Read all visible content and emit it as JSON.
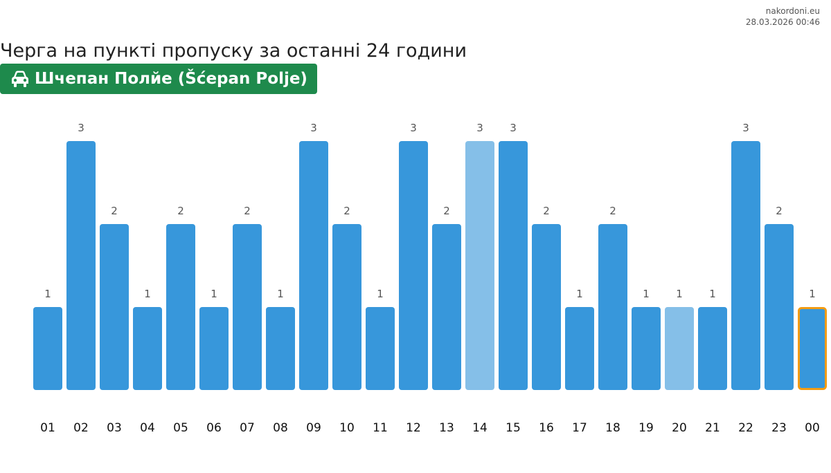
{
  "source": {
    "site": "nakordoni.eu",
    "timestamp": "28.03.2026 00:46"
  },
  "header": {
    "title": "Черга на пункті пропуску за останні 24 години",
    "checkpoint_name": "Шчепан Полйе (Šćepan Polje)",
    "vehicle_icon": "car-icon",
    "badge_color": "#1e8a4c"
  },
  "chart_data": {
    "type": "bar",
    "categories": [
      "01",
      "02",
      "03",
      "04",
      "05",
      "06",
      "07",
      "08",
      "09",
      "10",
      "11",
      "12",
      "13",
      "14",
      "15",
      "16",
      "17",
      "18",
      "19",
      "20",
      "21",
      "22",
      "23",
      "00"
    ],
    "values": [
      1,
      3,
      2,
      1,
      2,
      1,
      2,
      1,
      3,
      2,
      1,
      3,
      2,
      3,
      3,
      2,
      1,
      2,
      1,
      1,
      1,
      3,
      2,
      1
    ],
    "ylim": [
      0,
      3
    ],
    "grid": false,
    "legend": "none",
    "colors": {
      "bar": "#3797db",
      "bar_light": "#85bfe8",
      "current_outline": "#f39c12"
    },
    "light_bars": [
      "14",
      "20"
    ],
    "current_bar": "00"
  }
}
